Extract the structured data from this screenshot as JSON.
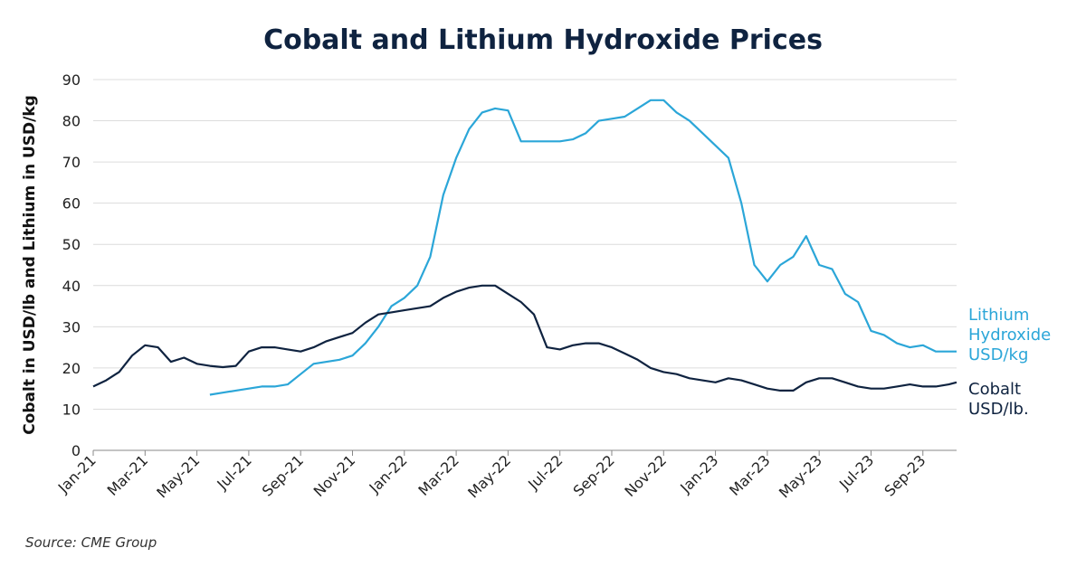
{
  "chart_data": {
    "type": "line",
    "title": "Cobalt and Lithium Hydroxide Prices",
    "y_label": "Cobalt in USD/lb and Lithium in USD/kg",
    "source": "Source: CME Group",
    "x": [
      0,
      0.5,
      1,
      1.5,
      2,
      2.5,
      3,
      3.5,
      4,
      4.5,
      5,
      5.5,
      6,
      6.5,
      7,
      7.5,
      8,
      8.5,
      9,
      9.5,
      10,
      10.5,
      11,
      11.5,
      12,
      12.5,
      13,
      13.5,
      14,
      14.5,
      15,
      15.5,
      16,
      16.5,
      17,
      17.5,
      18,
      18.5,
      19,
      19.5,
      20,
      20.5,
      21,
      21.5,
      22,
      22.5,
      23,
      23.5,
      24,
      24.5,
      25,
      25.5,
      26,
      26.5,
      27,
      27.5,
      28,
      28.5,
      29,
      29.5,
      30,
      30.5,
      31,
      31.5,
      32,
      32.5,
      33,
      33.3
    ],
    "series": [
      {
        "name": "Lithium Hydroxide USD/kg",
        "color": "#2ba6d8",
        "values": [
          null,
          null,
          null,
          null,
          null,
          null,
          null,
          null,
          null,
          13.5,
          14,
          14.5,
          15,
          15.5,
          15.5,
          16,
          18.5,
          21,
          21.5,
          22,
          23,
          26,
          30,
          35,
          37,
          40,
          47,
          62,
          71,
          78,
          82,
          83,
          82.5,
          75,
          75,
          75,
          75,
          75.5,
          77,
          80,
          80.5,
          81,
          83,
          85,
          85,
          82,
          80,
          77,
          74,
          71,
          60,
          45,
          41,
          45,
          47,
          52,
          45,
          44,
          38,
          36,
          29,
          28,
          26,
          25,
          25.5,
          24,
          24,
          24
        ]
      },
      {
        "name": "Cobalt USD/lb.",
        "color": "#0f2340",
        "values": [
          15.5,
          17,
          19,
          23,
          25.5,
          25,
          21.5,
          22.5,
          21,
          20.5,
          20.2,
          20.5,
          24,
          25,
          25,
          24.5,
          24,
          25,
          26.5,
          27.5,
          28.5,
          31,
          33,
          33.5,
          34,
          34.5,
          35,
          37,
          38.5,
          39.5,
          40,
          40,
          38,
          36,
          33,
          25,
          24.5,
          25.5,
          26,
          26,
          25,
          23.5,
          22,
          20,
          19,
          18.5,
          17.5,
          17,
          16.5,
          17.5,
          17,
          16,
          15,
          14.5,
          14.5,
          16.5,
          17.5,
          17.5,
          16.5,
          15.5,
          15,
          15,
          15.5,
          16,
          15.5,
          15.5,
          16,
          16.5
        ]
      }
    ],
    "xlim": [
      0,
      33.3
    ],
    "xticks": [
      {
        "value": 0,
        "label": "Jan-21"
      },
      {
        "value": 2,
        "label": "Mar-21"
      },
      {
        "value": 4,
        "label": "May-21"
      },
      {
        "value": 6,
        "label": "Jul-21"
      },
      {
        "value": 8,
        "label": "Sep-21"
      },
      {
        "value": 10,
        "label": "Nov-21"
      },
      {
        "value": 12,
        "label": "Jan-22"
      },
      {
        "value": 14,
        "label": "Mar-22"
      },
      {
        "value": 16,
        "label": "May-22"
      },
      {
        "value": 18,
        "label": "Jul-22"
      },
      {
        "value": 20,
        "label": "Sep-22"
      },
      {
        "value": 22,
        "label": "Nov-22"
      },
      {
        "value": 24,
        "label": "Jan-23"
      },
      {
        "value": 26,
        "label": "Mar-23"
      },
      {
        "value": 28,
        "label": "May-23"
      },
      {
        "value": 30,
        "label": "Jul-23"
      },
      {
        "value": 32,
        "label": "Sep-23"
      }
    ],
    "ylim": [
      0,
      90
    ],
    "yticks": [
      0,
      10,
      20,
      30,
      40,
      50,
      60,
      70,
      80,
      90
    ],
    "grid": true
  }
}
